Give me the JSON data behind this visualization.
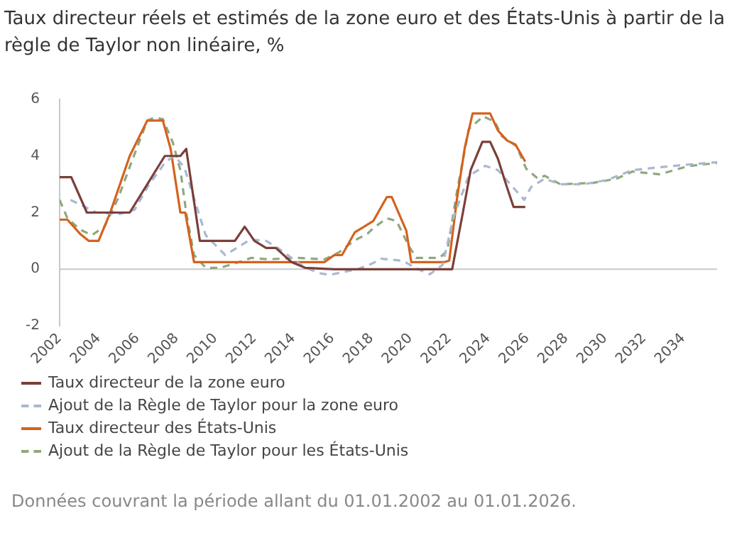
{
  "chart_data": {
    "type": "line",
    "title": "Taux directeur réels et estimés de la zone euro et des États-Unis à partir de la règle de Taylor non linéaire, %",
    "xlim": [
      2002,
      2035.75
    ],
    "xticks": [
      2002,
      2004,
      2006,
      2008,
      2010,
      2012,
      2014,
      2016,
      2018,
      2020,
      2022,
      2024,
      2026,
      2028,
      2030,
      2032,
      2034
    ],
    "ylim": [
      -2,
      6
    ],
    "yticks": [
      -2,
      0,
      2,
      4,
      6
    ],
    "grid": false,
    "legend": "bottom",
    "marker": "none",
    "ref_lines": [
      {
        "axis": "y",
        "value": 0,
        "color": "#c8c8c8"
      }
    ],
    "annotations": [
      "Données couvrant la période allant du 01.01.2002 au 01.01.2026."
    ],
    "series": [
      {
        "name": "Taux directeur de la zone euro",
        "color": "#7b3f3a",
        "line_style": "solid",
        "x": [
          2002,
          2002.6,
          2003.4,
          2005.6,
          2007.4,
          2008.2,
          2008.5,
          2009.2,
          2011.0,
          2011.5,
          2012.0,
          2012.6,
          2013.1,
          2013.9,
          2014.6,
          2016.1,
          2022.15,
          2022.7,
          2023.1,
          2023.7,
          2024.1,
          2024.5,
          2024.96,
          2025.3,
          2025.9
        ],
        "values": [
          3.25,
          3.25,
          2.0,
          2.0,
          4.0,
          4.0,
          4.25,
          1.0,
          1.0,
          1.5,
          1.0,
          0.75,
          0.75,
          0.25,
          0.05,
          0.0,
          0.0,
          2.0,
          3.5,
          4.5,
          4.5,
          3.9,
          2.9,
          2.2,
          2.2
        ]
      },
      {
        "name": "Ajout de la Règle de Taylor pour la zone euro",
        "color": "#a9b8cf",
        "line_style": "dashed",
        "x": [
          2002.56,
          2003.9,
          2005.1,
          2005.85,
          2006.6,
          2007.45,
          2007.9,
          2008.4,
          2008.9,
          2009.5,
          2010.5,
          2011.1,
          2011.8,
          2012.6,
          2013.2,
          2013.9,
          2014.6,
          2015.4,
          2015.85,
          2016.6,
          2017.3,
          2018.05,
          2018.5,
          2019.6,
          2020.4,
          2021.0,
          2021.65,
          2022.25,
          2023.0,
          2023.85,
          2024.5,
          2025.2,
          2025.85,
          2026.2,
          2026.9,
          2027.7,
          2028.9,
          2030.1,
          2031.4,
          2032.8,
          2034.3,
          2035.75
        ],
        "values": [
          2.45,
          2.0,
          1.95,
          2.1,
          3.0,
          3.8,
          4.0,
          3.6,
          2.5,
          1.2,
          0.5,
          0.75,
          1.05,
          1.0,
          0.75,
          0.4,
          0.05,
          -0.15,
          -0.2,
          -0.1,
          0.0,
          0.2,
          0.37,
          0.3,
          0.0,
          -0.18,
          0.15,
          1.9,
          3.3,
          3.65,
          3.5,
          2.95,
          2.45,
          2.9,
          3.2,
          3.0,
          3.0,
          3.15,
          3.5,
          3.6,
          3.7,
          3.78
        ]
      },
      {
        "name": "Taux directeur des États-Unis",
        "color": "#d4621f",
        "line_style": "solid",
        "x": [
          2002,
          2002.4,
          2003.05,
          2003.5,
          2004.0,
          2004.6,
          2005.6,
          2006.5,
          2007.3,
          2007.7,
          2008.2,
          2008.45,
          2008.9,
          2015.6,
          2016.1,
          2016.5,
          2017.15,
          2018.1,
          2018.8,
          2019.05,
          2019.8,
          2020.05,
          2021.75,
          2022.0,
          2022.4,
          2022.8,
          2023.2,
          2024.1,
          2024.5,
          2024.96,
          2025.4,
          2025.9
        ],
        "values": [
          1.75,
          1.75,
          1.25,
          1.0,
          1.0,
          2.0,
          4.0,
          5.25,
          5.25,
          4.25,
          2.0,
          2.0,
          0.25,
          0.25,
          0.5,
          0.5,
          1.3,
          1.7,
          2.55,
          2.55,
          1.35,
          0.25,
          0.25,
          0.3,
          2.5,
          4.3,
          5.5,
          5.5,
          4.9,
          4.55,
          4.4,
          3.8
        ]
      },
      {
        "name": "Ajout de la Règle de Taylor pour les États-Unis",
        "color": "#8fa87e",
        "line_style": "dashed",
        "x": [
          2002,
          2002.4,
          2003.05,
          2003.65,
          2004.3,
          2005.0,
          2005.7,
          2006.5,
          2006.85,
          2007.3,
          2007.8,
          2008.2,
          2008.5,
          2008.9,
          2009.5,
          2010.25,
          2011.2,
          2011.85,
          2012.7,
          2014.15,
          2015.6,
          2016.35,
          2017.1,
          2017.8,
          2018.1,
          2018.8,
          2019.3,
          2019.9,
          2020.3,
          2021.5,
          2021.9,
          2022.4,
          2023.0,
          2023.75,
          2024.35,
          2024.7,
          2025.45,
          2025.95,
          2026.55,
          2026.9,
          2027.7,
          2029.4,
          2030.6,
          2031.4,
          2032.8,
          2034.3,
          2035.75
        ],
        "values": [
          2.45,
          1.8,
          1.4,
          1.2,
          1.5,
          2.5,
          3.8,
          5.25,
          5.35,
          5.3,
          4.5,
          3.5,
          2.0,
          0.5,
          0.05,
          0.05,
          0.25,
          0.4,
          0.35,
          0.4,
          0.35,
          0.6,
          1.0,
          1.25,
          1.45,
          1.8,
          1.7,
          0.85,
          0.4,
          0.4,
          0.65,
          2.75,
          4.95,
          5.4,
          5.2,
          4.7,
          4.35,
          3.55,
          3.2,
          3.3,
          3.0,
          3.05,
          3.2,
          3.45,
          3.35,
          3.65,
          3.75
        ]
      }
    ]
  }
}
